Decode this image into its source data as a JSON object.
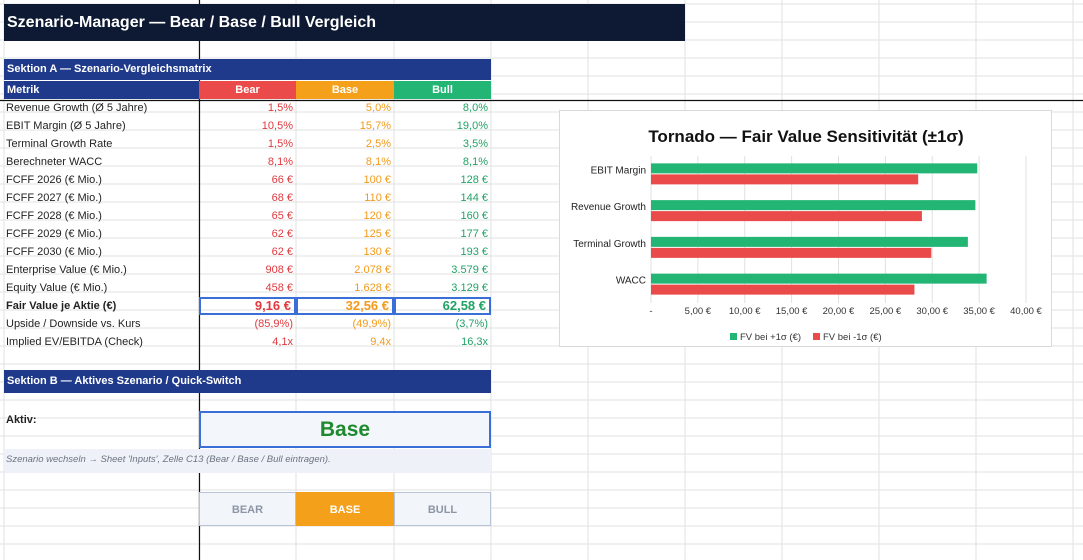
{
  "title": "Szenario-Manager — Bear / Base / Bull Vergleich",
  "section_a": {
    "title": "Sektion A — Szenario-Vergleichsmatrix",
    "headers": {
      "metric": "Metrik",
      "bear": "Bear",
      "base": "Base",
      "bull": "Bull"
    },
    "colors": {
      "bear": "#ea4a4a",
      "base": "#f5a01a",
      "bull": "#22b573",
      "bar": "#1f3a8a"
    },
    "rows": [
      {
        "label": "Revenue Growth (Ø 5 Jahre)",
        "bear": "1,5%",
        "base": "5,0%",
        "bull": "8,0%"
      },
      {
        "label": "EBIT Margin (Ø 5 Jahre)",
        "bear": "10,5%",
        "base": "15,7%",
        "bull": "19,0%"
      },
      {
        "label": "Terminal Growth Rate",
        "bear": "1,5%",
        "base": "2,5%",
        "bull": "3,5%"
      },
      {
        "label": "Berechneter WACC",
        "bear": "8,1%",
        "base": "8,1%",
        "bull": "8,1%"
      },
      {
        "label": "FCFF 2026 (€ Mio.)",
        "bear": "66 €",
        "base": "100 €",
        "bull": "128 €"
      },
      {
        "label": "FCFF 2027 (€ Mio.)",
        "bear": "68 €",
        "base": "110 €",
        "bull": "144 €"
      },
      {
        "label": "FCFF 2028 (€ Mio.)",
        "bear": "65 €",
        "base": "120 €",
        "bull": "160 €"
      },
      {
        "label": "FCFF 2029 (€ Mio.)",
        "bear": "62 €",
        "base": "125 €",
        "bull": "177 €"
      },
      {
        "label": "FCFF 2030 (€ Mio.)",
        "bear": "62 €",
        "base": "130 €",
        "bull": "193 €"
      },
      {
        "label": "Enterprise Value (€ Mio.)",
        "bear": "908 €",
        "base": "2.078 €",
        "bull": "3.579 €"
      },
      {
        "label": "Equity Value (€ Mio.)",
        "bear": "458 €",
        "base": "1.628 €",
        "bull": "3.129 €"
      },
      {
        "label": "Fair Value je Aktie (€)",
        "bear": "9,16 €",
        "base": "32,56 €",
        "bull": "62,58 €",
        "bold": true
      },
      {
        "label": "Upside / Downside vs. Kurs",
        "bear": "(85,9%)",
        "base": "(49,9%)",
        "bull": "(3,7%)"
      },
      {
        "label": "Implied EV/EBITDA (Check)",
        "bear": "4,1x",
        "base": "9,4x",
        "bull": "16,3x"
      }
    ]
  },
  "section_b": {
    "title": "Sektion B — Aktives Szenario / Quick-Switch",
    "active_label": "Aktiv:",
    "active_value": "Base",
    "note": "Szenario wechseln → Sheet 'Inputs', Zelle C13 (Bear / Base / Bull eintragen).",
    "buttons": {
      "bear": "BEAR",
      "base": "BASE",
      "bull": "BULL"
    }
  },
  "chart_data": {
    "type": "bar",
    "orientation": "horizontal",
    "title": "Tornado — Fair Value Sensitivität (±1σ)",
    "categories": [
      "EBIT Margin",
      "Revenue Growth",
      "Terminal Growth",
      "WACC"
    ],
    "series": [
      {
        "name": "FV bei +1σ (€)",
        "color": "#22b573",
        "values": [
          34.8,
          34.6,
          33.8,
          35.8
        ]
      },
      {
        "name": "FV bei -1σ (€)",
        "color": "#ea4a4a",
        "values": [
          28.5,
          28.9,
          29.9,
          28.1
        ]
      }
    ],
    "xlim": [
      0,
      40
    ],
    "xticks": [
      "-",
      "5,00 €",
      "10,00 €",
      "15,00 €",
      "20,00 €",
      "25,00 €",
      "30,00 €",
      "35,00 €",
      "40,00 €"
    ],
    "grid": true,
    "legend": "bottom"
  }
}
